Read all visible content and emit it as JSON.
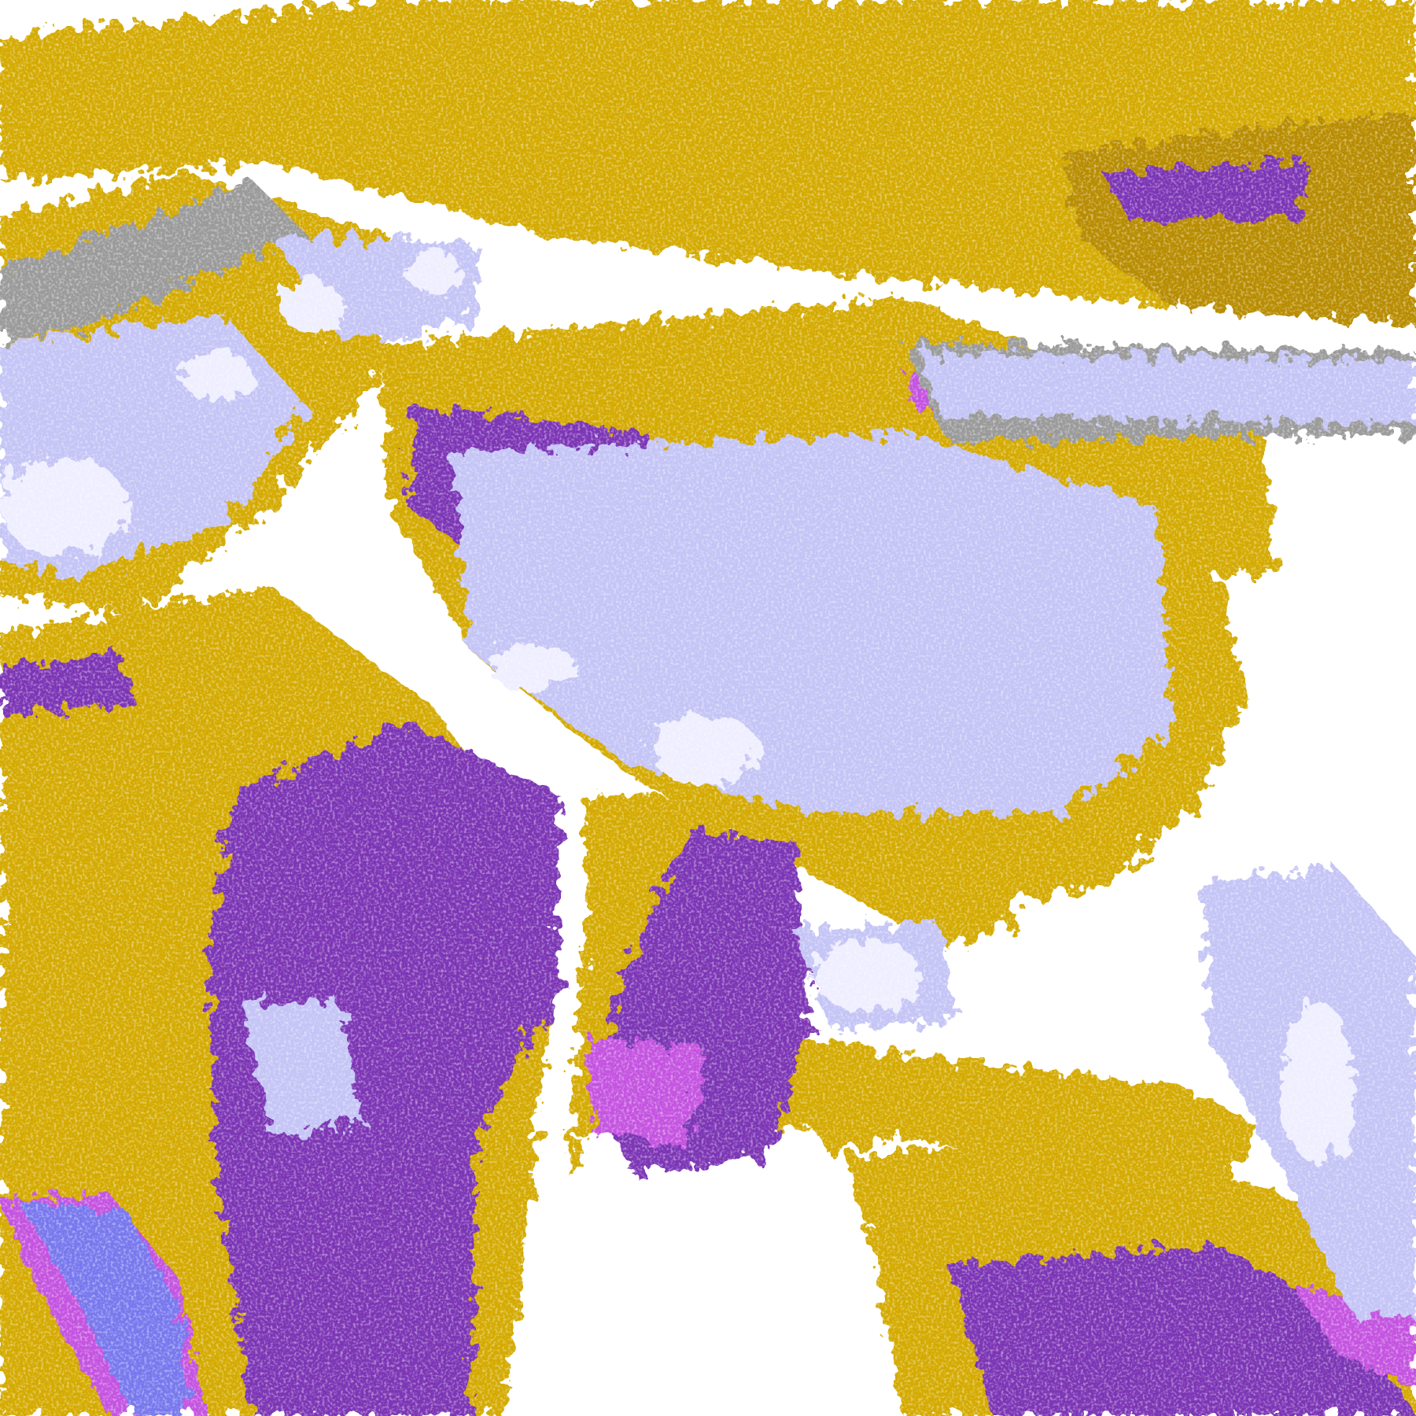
{
  "image": {
    "kind": "satellite cloud/surface classification composite",
    "colors": {
      "background": "#ffffff",
      "gold": "#d4aa00",
      "dark_gold": "#b88c00",
      "purple": "#7b35b5",
      "magenta": "#c452e0",
      "lavender": "#c4c4f6",
      "pale": "#eeeeff",
      "blue": "#7878ee",
      "gray": "#9a9a9a"
    }
  }
}
